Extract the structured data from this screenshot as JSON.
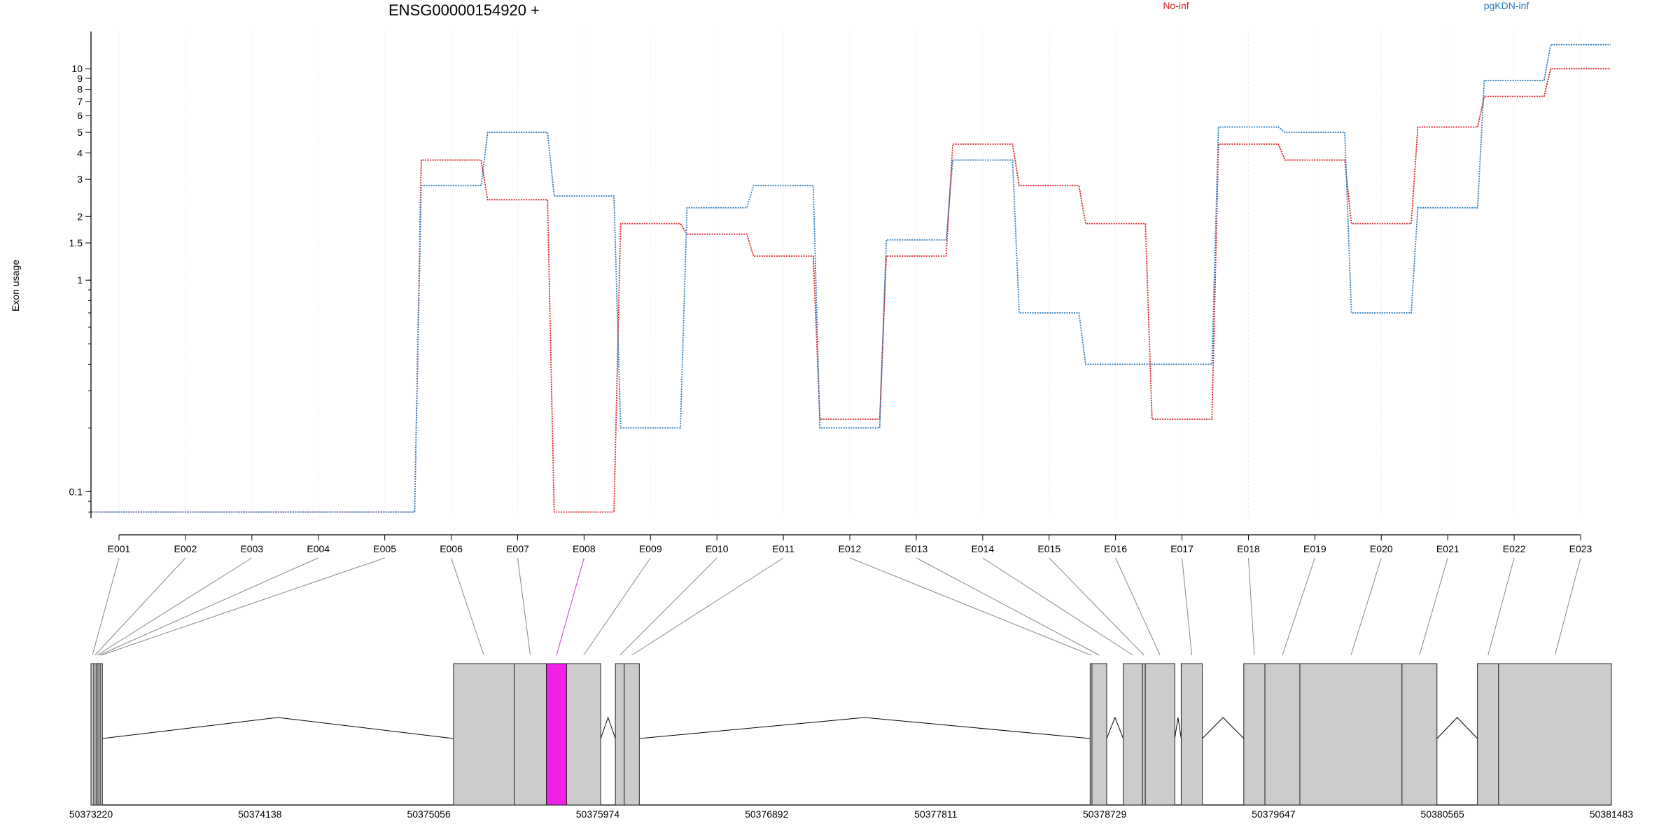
{
  "chart_data": {
    "type": "line",
    "title": "ENSG00000154920 +",
    "ylabel": "Exon usage",
    "yscale": "log",
    "ylim": [
      0.075,
      15
    ],
    "yticks": [
      "0.1",
      "1",
      "1.5",
      "2",
      "3",
      "4",
      "5",
      "6",
      "7",
      "8",
      "9",
      "10"
    ],
    "grid": "vertical-light",
    "legend_placement": "top-right",
    "highlight_exon": "E008",
    "highlight_color": "#f020e6",
    "categories": [
      "E001",
      "E002",
      "E003",
      "E004",
      "E005",
      "E006",
      "E007",
      "E008",
      "E009",
      "E010",
      "E011",
      "E012",
      "E013",
      "E014",
      "E015",
      "E016",
      "E017",
      "E018",
      "E019",
      "E020",
      "E021",
      "E022",
      "E023"
    ],
    "series": [
      {
        "name": "No-inf",
        "color": "#d7191c",
        "values": [
          0.08,
          0.08,
          0.08,
          0.08,
          0.08,
          3.7,
          2.4,
          0.08,
          1.85,
          1.65,
          1.3,
          0.22,
          1.3,
          4.4,
          2.8,
          1.85,
          0.22,
          4.4,
          3.7,
          1.85,
          5.3,
          7.4,
          10
        ]
      },
      {
        "name": "pgKDN-inf",
        "color": "#2b7bba",
        "values": [
          0.08,
          0.08,
          0.08,
          0.08,
          0.08,
          2.8,
          5.0,
          2.5,
          0.2,
          2.2,
          2.8,
          0.2,
          1.55,
          3.7,
          0.7,
          0.4,
          0.4,
          5.3,
          5.0,
          0.7,
          2.2,
          8.8,
          13.0
        ]
      }
    ],
    "gene_model": {
      "coordinate_ticks": [
        "50373220",
        "50374138",
        "50375056",
        "50375974",
        "50376892",
        "50377811",
        "50378729",
        "50379647",
        "50380565",
        "50381483"
      ],
      "coord_range": [
        50373220,
        50381483
      ],
      "exons": [
        {
          "id": "E001",
          "start": 50373220,
          "end": 50373235
        },
        {
          "id": "E002",
          "start": 50373235,
          "end": 50373248
        },
        {
          "id": "E003",
          "start": 50373248,
          "end": 50373258
        },
        {
          "id": "E004",
          "start": 50373258,
          "end": 50373270
        },
        {
          "id": "E005",
          "start": 50373270,
          "end": 50373282
        },
        {
          "id": "E006",
          "start": 50375190,
          "end": 50375520
        },
        {
          "id": "E007",
          "start": 50375520,
          "end": 50375695
        },
        {
          "id": "E008",
          "start": 50375695,
          "end": 50375805
        },
        {
          "id": "E009",
          "start": 50375805,
          "end": 50375990
        },
        {
          "id": "E010",
          "start": 50376070,
          "end": 50376118
        },
        {
          "id": "E011",
          "start": 50376118,
          "end": 50376200
        },
        {
          "id": "E012",
          "start": 50378650,
          "end": 50378660
        },
        {
          "id": "E013",
          "start": 50378660,
          "end": 50378740
        },
        {
          "id": "E014",
          "start": 50378830,
          "end": 50378935
        },
        {
          "id": "E015",
          "start": 50378935,
          "end": 50378950
        },
        {
          "id": "E016",
          "start": 50378950,
          "end": 50379110
        },
        {
          "id": "E017",
          "start": 50379145,
          "end": 50379260
        },
        {
          "id": "E018",
          "start": 50379485,
          "end": 50379600
        },
        {
          "id": "E019",
          "start": 50379600,
          "end": 50379790
        },
        {
          "id": "E020",
          "start": 50379790,
          "end": 50380345
        },
        {
          "id": "E021",
          "start": 50380345,
          "end": 50380535
        },
        {
          "id": "E022",
          "start": 50380755,
          "end": 50380870
        },
        {
          "id": "E023",
          "start": 50380870,
          "end": 50381483
        }
      ]
    }
  }
}
